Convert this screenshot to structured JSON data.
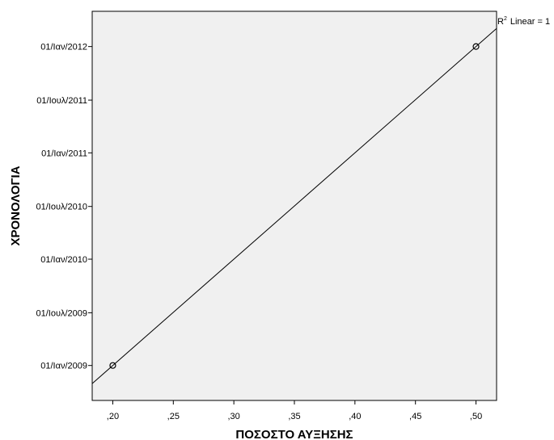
{
  "chart_data": {
    "type": "scatter",
    "xlabel": "ΠΟΣΟΣΤΟ ΑΥΞΗΣΗΣ",
    "ylabel": "ΧΡΟΝΟΛΟΓΙΑ",
    "annotation": {
      "r": "R",
      "sup": "2",
      "text": "Linear = 1"
    },
    "x_scale": "linear",
    "y_scale": "date",
    "xlim": [
      0.183,
      0.517
    ],
    "ylim": [
      "2008-09-03",
      "2012-05-01"
    ],
    "x_ticks": [
      {
        "value": 0.2,
        "label": ",20"
      },
      {
        "value": 0.25,
        "label": ",25"
      },
      {
        "value": 0.3,
        "label": ",30"
      },
      {
        "value": 0.35,
        "label": ",35"
      },
      {
        "value": 0.4,
        "label": ",40"
      },
      {
        "value": 0.45,
        "label": ",45"
      },
      {
        "value": 0.5,
        "label": ",50"
      }
    ],
    "y_ticks": [
      {
        "value": "2009-01-01",
        "label": "01/Ιαν/2009"
      },
      {
        "value": "2009-07-01",
        "label": "01/Ιουλ/2009"
      },
      {
        "value": "2010-01-01",
        "label": "01/Ιαν/2010"
      },
      {
        "value": "2010-07-01",
        "label": "01/Ιουλ/2010"
      },
      {
        "value": "2011-01-01",
        "label": "01/Ιαν/2011"
      },
      {
        "value": "2011-07-01",
        "label": "01/Ιουλ/2011"
      },
      {
        "value": "2012-01-01",
        "label": "01/Ιαν/2012"
      }
    ],
    "points": [
      {
        "x": 0.2,
        "y": "2009-01-01"
      },
      {
        "x": 0.5,
        "y": "2012-01-01"
      }
    ],
    "fit_line": {
      "type": "linear",
      "r_squared": 1
    },
    "grid": false,
    "colors": {
      "plot_background": "#f0f0f0",
      "line": "#000000",
      "marker": "#000000"
    }
  }
}
